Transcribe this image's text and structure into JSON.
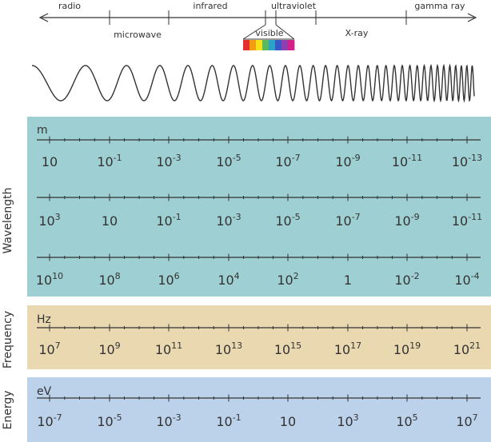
{
  "spectrum": {
    "bands_above": [
      "radio",
      "infrared",
      "ultraviolet",
      "gamma ray"
    ],
    "bands_below": [
      "microwave",
      "X-ray"
    ],
    "visible_label": "visible",
    "rainbow_colors": [
      "#e4312f",
      "#f39c12",
      "#f7e017",
      "#5cb85c",
      "#2aa3c4",
      "#3a57c7",
      "#8e3fb0",
      "#d21f8a"
    ]
  },
  "wavelength": {
    "side_label": "Wavelength",
    "unit": "m",
    "color": "#9ecfd2",
    "rows": [
      [
        {
          "base": "10",
          "exp": ""
        },
        {
          "base": "10",
          "exp": "-1"
        },
        {
          "base": "10",
          "exp": "-3"
        },
        {
          "base": "10",
          "exp": "-5"
        },
        {
          "base": "10",
          "exp": "-7"
        },
        {
          "base": "10",
          "exp": "-9"
        },
        {
          "base": "10",
          "exp": "-11"
        },
        {
          "base": "10",
          "exp": "-13"
        }
      ],
      [
        {
          "base": "10",
          "exp": "3"
        },
        {
          "base": "10",
          "exp": ""
        },
        {
          "base": "10",
          "exp": "-1"
        },
        {
          "base": "10",
          "exp": "-3"
        },
        {
          "base": "10",
          "exp": "-5"
        },
        {
          "base": "10",
          "exp": "-7"
        },
        {
          "base": "10",
          "exp": "-9"
        },
        {
          "base": "10",
          "exp": "-11"
        }
      ],
      [
        {
          "base": "10",
          "exp": "10"
        },
        {
          "base": "10",
          "exp": "8"
        },
        {
          "base": "10",
          "exp": "6"
        },
        {
          "base": "10",
          "exp": "4"
        },
        {
          "base": "10",
          "exp": "2"
        },
        {
          "base": "1",
          "exp": ""
        },
        {
          "base": "10",
          "exp": "-2"
        },
        {
          "base": "10",
          "exp": "-4"
        }
      ]
    ]
  },
  "frequency": {
    "side_label": "Frequency",
    "unit": "Hz",
    "color": "#ead9b0",
    "values": [
      {
        "base": "10",
        "exp": "7"
      },
      {
        "base": "10",
        "exp": "9"
      },
      {
        "base": "10",
        "exp": "11"
      },
      {
        "base": "10",
        "exp": "13"
      },
      {
        "base": "10",
        "exp": "15"
      },
      {
        "base": "10",
        "exp": "17"
      },
      {
        "base": "10",
        "exp": "19"
      },
      {
        "base": "10",
        "exp": "21"
      }
    ]
  },
  "energy": {
    "side_label": "Energy",
    "unit": "eV",
    "color": "#bcd1ea",
    "values": [
      {
        "base": "10",
        "exp": "-7"
      },
      {
        "base": "10",
        "exp": "-5"
      },
      {
        "base": "10",
        "exp": "-3"
      },
      {
        "base": "10",
        "exp": "-1"
      },
      {
        "base": "10",
        "exp": ""
      },
      {
        "base": "10",
        "exp": "3"
      },
      {
        "base": "10",
        "exp": "5"
      },
      {
        "base": "10",
        "exp": "7"
      }
    ]
  }
}
